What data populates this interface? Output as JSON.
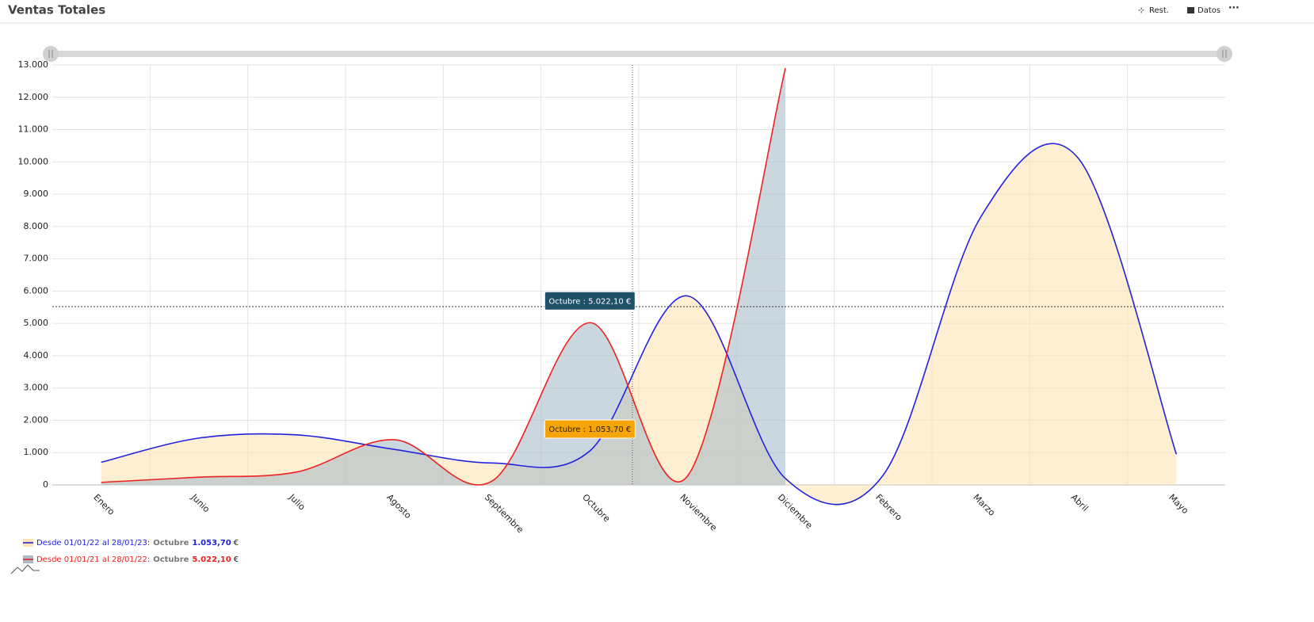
{
  "header": {
    "title": "Ventas Totales",
    "toolbar": [
      "Rest.",
      "Datos"
    ]
  },
  "chart_data": {
    "type": "area",
    "categories": [
      "Enero",
      "Junio",
      "Julio",
      "Agosto",
      "Septiembre",
      "Octubre",
      "Noviembre",
      "Diciembre",
      "Febrero",
      "Marzo",
      "Abril",
      "Mayo"
    ],
    "series": [
      {
        "name": "Desde 01/01/22 al 28/01/23:",
        "color": "#2222dd",
        "fill": "#fde3b4",
        "tooltip_color": "#f5a50a",
        "values": [
          700,
          1450,
          1550,
          1100,
          680,
          1053.7,
          5850,
          200,
          300,
          8300,
          10100,
          950
        ],
        "value_labels": [
          null,
          null,
          null,
          null,
          null,
          "Octubre : 1.053,70 €",
          null,
          null,
          null,
          null,
          null,
          null
        ],
        "legend_value": "1.053,70",
        "currency": "€"
      },
      {
        "name": "Desde 01/01/21 al 28/01/22:",
        "color": "#ee2222",
        "fill": "#a9bcc8",
        "tooltip_color": "#1f5068",
        "values": [
          80,
          240,
          400,
          1400,
          120,
          5022.1,
          280,
          12900,
          null,
          null,
          null,
          null
        ],
        "value_labels": [
          null,
          null,
          null,
          null,
          null,
          "Octubre : 5.022,10 €",
          null,
          null,
          null,
          null,
          null,
          null
        ],
        "legend_value": "5.022,10",
        "currency": "€"
      }
    ],
    "ylim": [
      0,
      13000
    ],
    "yticks": [
      0,
      {
        "value": 1000,
        "label": "1.000"
      },
      {
        "value": 2000,
        "label": "2.000"
      },
      {
        "value": 3000,
        "label": "3.000"
      },
      {
        "value": 4000,
        "label": "4.000"
      },
      {
        "value": 5000,
        "label": "5.000"
      },
      {
        "value": 6000,
        "label": "6.000"
      },
      {
        "value": 7000,
        "label": "7.000"
      },
      {
        "value": 8000,
        "label": "8.000"
      },
      {
        "value": 9000,
        "label": "9.000"
      },
      {
        "value": 10000,
        "label": "10.000"
      },
      {
        "value": 11000,
        "label": "11.000"
      },
      {
        "value": 12000,
        "label": "12.000"
      },
      {
        "value": 13000,
        "label": "13.000"
      }
    ],
    "grid": true,
    "legend": "bottom-left"
  }
}
